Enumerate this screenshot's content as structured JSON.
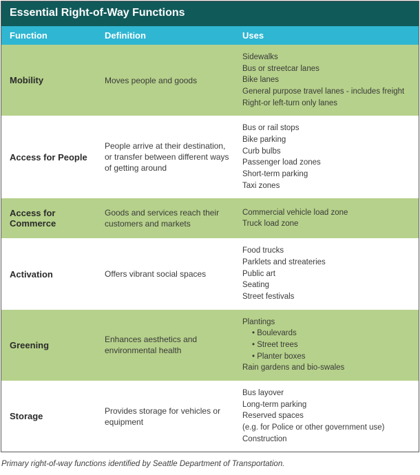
{
  "title": "Essential Right-of-Way Functions",
  "colors": {
    "title_bg": "#115a5a",
    "header_bg": "#2fb6d2",
    "row_alt0": "#b6d18b",
    "row_alt1": "#ffffff"
  },
  "columns": {
    "function": "Function",
    "definition": "Definition",
    "uses": "Uses"
  },
  "rows": [
    {
      "function": "Mobility",
      "definition": "Moves people and goods",
      "uses": [
        {
          "t": "Sidewalks"
        },
        {
          "t": "Bus or streetcar lanes"
        },
        {
          "t": "Bike lanes"
        },
        {
          "t": "General purpose travel lanes - includes freight"
        },
        {
          "t": "Right-or left-turn only lanes"
        }
      ]
    },
    {
      "function": "Access for People",
      "definition": "People arrive at their destination, or transfer between different ways of getting around",
      "uses": [
        {
          "t": "Bus or rail stops"
        },
        {
          "t": "Bike parking"
        },
        {
          "t": "Curb bulbs"
        },
        {
          "t": "Passenger load zones"
        },
        {
          "t": "Short-term parking"
        },
        {
          "t": "Taxi zones"
        }
      ]
    },
    {
      "function": "Access for Commerce",
      "definition": "Goods and services reach their customers and markets",
      "uses": [
        {
          "t": "Commercial vehicle load zone"
        },
        {
          "t": "Truck load zone"
        }
      ]
    },
    {
      "function": "Activation",
      "definition": "Offers vibrant social spaces",
      "uses": [
        {
          "t": "Food trucks"
        },
        {
          "t": "Parklets and streateries"
        },
        {
          "t": "Public art"
        },
        {
          "t": "Seating"
        },
        {
          "t": "Street festivals"
        }
      ]
    },
    {
      "function": "Greening",
      "definition": "Enhances aesthetics and environmental health",
      "uses": [
        {
          "t": "Plantings"
        },
        {
          "t": "Boulevards",
          "sub": true
        },
        {
          "t": "Street trees",
          "sub": true
        },
        {
          "t": "Planter boxes",
          "sub": true
        },
        {
          "t": "Rain gardens and bio-swales"
        }
      ]
    },
    {
      "function": "Storage",
      "definition": "Provides storage for vehicles or equipment",
      "uses": [
        {
          "t": "Bus layover"
        },
        {
          "t": "Long-term parking"
        },
        {
          "t": "Reserved spaces"
        },
        {
          "t": "(e.g. for Police or other government use)"
        },
        {
          "t": "Construction"
        }
      ]
    }
  ],
  "caption": "Primary right-of-way functions identified by Seattle Department of Transportation."
}
